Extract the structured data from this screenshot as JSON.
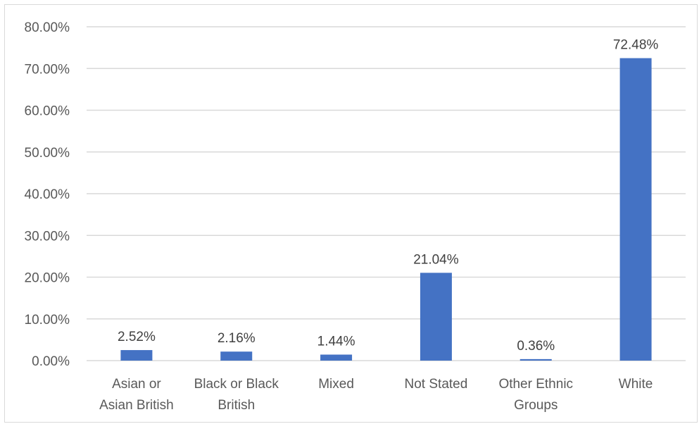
{
  "chart_data": {
    "type": "bar",
    "title": "",
    "xlabel": "",
    "ylabel": "",
    "categories": [
      "Asian or Asian British",
      "Black or Black British",
      "Mixed",
      "Not Stated",
      "Other Ethnic Groups",
      "White"
    ],
    "category_label_lines": [
      [
        "Asian or",
        "Asian British"
      ],
      [
        "Black or Black",
        "British"
      ],
      [
        "Mixed"
      ],
      [
        "Not Stated"
      ],
      [
        "Other Ethnic",
        "Groups"
      ],
      [
        "White"
      ]
    ],
    "values": [
      2.52,
      2.16,
      1.44,
      21.04,
      0.36,
      72.48
    ],
    "value_labels": [
      "2.52%",
      "2.16%",
      "1.44%",
      "21.04%",
      "0.36%",
      "72.48%"
    ],
    "ylim": [
      0,
      80
    ],
    "yticks": [
      0,
      10,
      20,
      30,
      40,
      50,
      60,
      70,
      80
    ],
    "ytick_labels": [
      "0.00%",
      "10.00%",
      "20.00%",
      "30.00%",
      "40.00%",
      "50.00%",
      "60.00%",
      "70.00%",
      "80.00%"
    ],
    "grid": true,
    "legend": "none",
    "colors": {
      "bar": "#4472c4",
      "grid": "#d9d9d9",
      "axis": "#d9d9d9"
    }
  }
}
